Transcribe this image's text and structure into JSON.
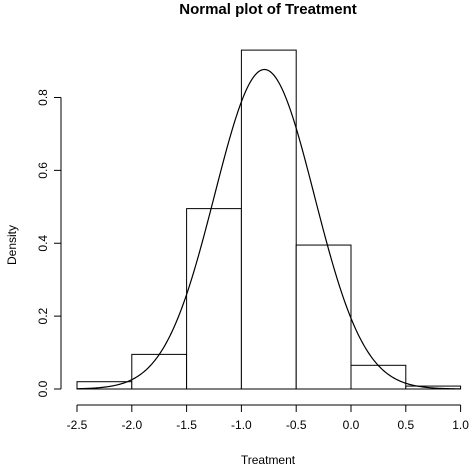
{
  "chart_data": {
    "type": "bar",
    "title": "Normal plot of Treatment",
    "xlabel": "Treatment",
    "ylabel": "Density",
    "xlim": [
      -2.5,
      1.0
    ],
    "ylim": [
      0,
      0.8
    ],
    "x_ticks": [
      "-2.5",
      "-2.0",
      "-1.5",
      "-1.0",
      "-0.5",
      "0.0",
      "0.5",
      "1.0"
    ],
    "y_ticks": [
      "0.0",
      "0.2",
      "0.4",
      "0.6",
      "0.8"
    ],
    "bins": [
      {
        "start": -2.5,
        "end": -2.0,
        "density": 0.02
      },
      {
        "start": -2.0,
        "end": -1.5,
        "density": 0.095
      },
      {
        "start": -1.5,
        "end": -1.0,
        "density": 0.495
      },
      {
        "start": -1.0,
        "end": -0.5,
        "density": 0.93
      },
      {
        "start": -0.5,
        "end": 0.0,
        "density": 0.395
      },
      {
        "start": 0.0,
        "end": 0.5,
        "density": 0.065
      },
      {
        "start": 0.5,
        "end": 1.0,
        "density": 0.008
      }
    ],
    "normal_curve": {
      "mean": -0.79,
      "sd": 0.455
    },
    "grid": false,
    "legend": "none"
  }
}
